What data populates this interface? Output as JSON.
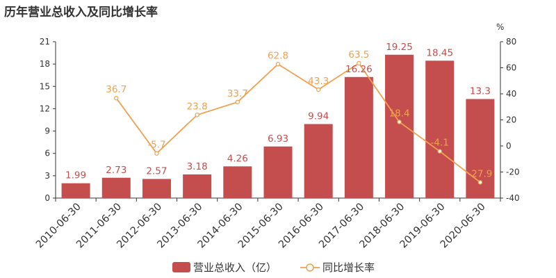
{
  "title": "历年营业总收入及同比增长率",
  "colors": {
    "bar": "#c44e4e",
    "line": "#f0a050",
    "axis": "#333333"
  },
  "chart_data": {
    "type": "bar",
    "categories": [
      "2010-06-30",
      "2011-06-30",
      "2012-06-30",
      "2013-06-30",
      "2014-06-30",
      "2015-06-30",
      "2016-06-30",
      "2017-06-30",
      "2018-06-30",
      "2019-06-30",
      "2020-06-30"
    ],
    "series": [
      {
        "name": "营业总收入（亿）",
        "type": "bar",
        "axis": "left",
        "values": [
          1.99,
          2.73,
          2.57,
          3.18,
          4.26,
          6.93,
          9.94,
          16.26,
          19.25,
          18.45,
          13.3
        ],
        "labels": [
          "1.99",
          "2.73",
          "2.57",
          "3.18",
          "4.26",
          "6.93",
          "9.94",
          "16.26",
          "19.25",
          "18.45",
          "13.3"
        ]
      },
      {
        "name": "同比增长率",
        "type": "line",
        "axis": "right",
        "values": [
          null,
          36.7,
          -5.7,
          23.8,
          33.7,
          62.8,
          43.3,
          63.5,
          18.4,
          -4.1,
          -27.9
        ],
        "labels": [
          "",
          "36.7",
          "-5.7",
          "23.8",
          "33.7",
          "62.8",
          "43.3",
          "63.5",
          "18.4",
          "-4.1",
          "-27.9"
        ]
      }
    ],
    "y_left": {
      "range": [
        0,
        21
      ],
      "ticks": [
        0,
        3,
        6,
        9,
        12,
        15,
        18,
        21
      ]
    },
    "y_right": {
      "range": [
        -40,
        80
      ],
      "ticks": [
        -40,
        -20,
        0,
        20,
        40,
        60,
        80
      ],
      "unit": "%"
    },
    "grid": false,
    "legend_position": "bottom-center"
  }
}
